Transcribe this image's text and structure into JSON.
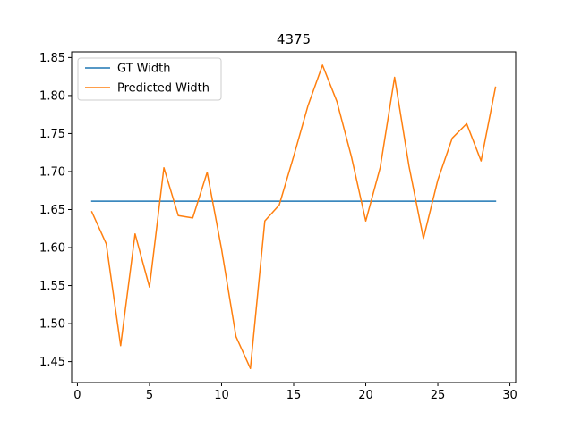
{
  "chart_data": {
    "type": "line",
    "title": "4375",
    "xlabel": "",
    "ylabel": "",
    "xlim": [
      -0.4,
      30.4
    ],
    "ylim": [
      1.4225,
      1.8575
    ],
    "xticks": [
      0,
      5,
      10,
      15,
      20,
      25,
      30
    ],
    "yticks": [
      1.45,
      1.5,
      1.55,
      1.6,
      1.65,
      1.7,
      1.75,
      1.8,
      1.85
    ],
    "grid": false,
    "legend_position": "upper-left",
    "x": [
      1,
      2,
      3,
      4,
      5,
      6,
      7,
      8,
      9,
      10,
      11,
      12,
      13,
      14,
      15,
      16,
      17,
      18,
      19,
      20,
      21,
      22,
      23,
      24,
      25,
      26,
      27,
      28,
      29
    ],
    "series": [
      {
        "name": "GT Width",
        "color": "#1f77b4",
        "values": [
          1.661,
          1.661,
          1.661,
          1.661,
          1.661,
          1.661,
          1.661,
          1.661,
          1.661,
          1.661,
          1.661,
          1.661,
          1.661,
          1.661,
          1.661,
          1.661,
          1.661,
          1.661,
          1.661,
          1.661,
          1.661,
          1.661,
          1.661,
          1.661,
          1.661,
          1.661,
          1.661,
          1.661,
          1.661
        ]
      },
      {
        "name": "Predicted Width",
        "color": "#ff7f0e",
        "values": [
          1.647,
          1.605,
          1.471,
          1.618,
          1.548,
          1.705,
          1.642,
          1.639,
          1.699,
          1.598,
          1.483,
          1.441,
          1.635,
          1.656,
          1.72,
          1.787,
          1.84,
          1.792,
          1.72,
          1.635,
          1.705,
          1.824,
          1.707,
          1.612,
          1.689,
          1.744,
          1.763,
          1.714,
          1.811
        ]
      }
    ]
  }
}
